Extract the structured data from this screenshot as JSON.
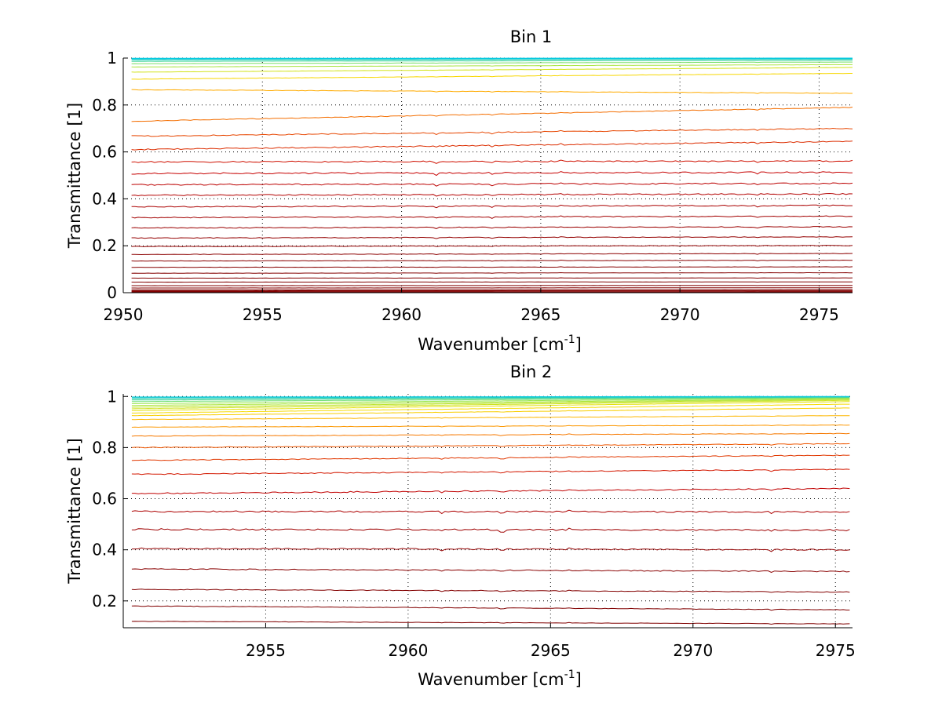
{
  "chart_data": [
    {
      "type": "line",
      "title": "Bin 1",
      "xlabel": {
        "main": "Wavenumber [cm",
        "sup": "-1",
        "close": "]"
      },
      "ylabel": "Transmittance [1]",
      "xlim": [
        2950,
        2976.2
      ],
      "ylim": [
        0,
        1.0
      ],
      "xticks": [
        2950,
        2955,
        2960,
        2965,
        2970,
        2975
      ],
      "yticks": [
        0,
        0.2,
        0.4,
        0.6,
        0.8,
        1
      ],
      "ytick_labels": [
        "0",
        "0.2",
        "0.4",
        "0.6",
        "0.8",
        "1"
      ],
      "grid": true,
      "x_range": [
        2950.3,
        2976.2
      ],
      "line_colors_by_level": "dark red (low) to orange to yellow to cyan (near 1)",
      "series": [
        {
          "start": 0.002,
          "end": 0.003
        },
        {
          "start": 0.005,
          "end": 0.006
        },
        {
          "start": 0.008,
          "end": 0.009
        },
        {
          "start": 0.012,
          "end": 0.013
        },
        {
          "start": 0.02,
          "end": 0.021
        },
        {
          "start": 0.03,
          "end": 0.031
        },
        {
          "start": 0.045,
          "end": 0.046
        },
        {
          "start": 0.062,
          "end": 0.063
        },
        {
          "start": 0.083,
          "end": 0.085
        },
        {
          "start": 0.108,
          "end": 0.11
        },
        {
          "start": 0.135,
          "end": 0.138
        },
        {
          "start": 0.163,
          "end": 0.167
        },
        {
          "start": 0.197,
          "end": 0.201
        },
        {
          "start": 0.233,
          "end": 0.238
        },
        {
          "start": 0.276,
          "end": 0.281
        },
        {
          "start": 0.32,
          "end": 0.326
        },
        {
          "start": 0.366,
          "end": 0.372
        },
        {
          "start": 0.415,
          "end": 0.421
        },
        {
          "start": 0.46,
          "end": 0.466
        },
        {
          "start": 0.508,
          "end": 0.513
        },
        {
          "start": 0.557,
          "end": 0.561
        },
        {
          "start": 0.61,
          "end": 0.645
        },
        {
          "start": 0.667,
          "end": 0.7
        },
        {
          "start": 0.731,
          "end": 0.79
        },
        {
          "start": 0.865,
          "end": 0.85
        },
        {
          "start": 0.91,
          "end": 0.935
        },
        {
          "start": 0.94,
          "end": 0.96
        },
        {
          "start": 0.962,
          "end": 0.972
        },
        {
          "start": 0.976,
          "end": 0.983
        },
        {
          "start": 0.986,
          "end": 0.99
        },
        {
          "start": 0.992,
          "end": 0.995
        },
        {
          "start": 0.996,
          "end": 0.998
        },
        {
          "start": 0.998,
          "end": 0.999
        },
        {
          "start": 0.999,
          "end": 1.0
        }
      ]
    },
    {
      "type": "line",
      "title": "Bin 2",
      "xlabel": {
        "main": "Wavenumber [cm",
        "sup": "-1",
        "close": "]"
      },
      "ylabel": "Transmittance [1]",
      "xlim": [
        2950.0,
        2975.6
      ],
      "ylim": [
        0.095,
        1.01
      ],
      "xticks": [
        2955,
        2960,
        2965,
        2970,
        2975
      ],
      "yticks": [
        0.2,
        0.4,
        0.6,
        0.8,
        1
      ],
      "ytick_labels": [
        "0.2",
        "0.4",
        "0.6",
        "0.8",
        "1"
      ],
      "grid": true,
      "x_range": [
        2950.3,
        2975.5
      ],
      "line_colors_by_level": "dark red (low) to red to orange to yellow to cyan (near 1)",
      "series": [
        {
          "start": 0.12,
          "end": 0.11
        },
        {
          "start": 0.18,
          "end": 0.165
        },
        {
          "start": 0.245,
          "end": 0.235
        },
        {
          "start": 0.325,
          "end": 0.315
        },
        {
          "start": 0.405,
          "end": 0.4
        },
        {
          "start": 0.48,
          "end": 0.477
        },
        {
          "start": 0.55,
          "end": 0.548
        },
        {
          "start": 0.62,
          "end": 0.64
        },
        {
          "start": 0.695,
          "end": 0.715
        },
        {
          "start": 0.75,
          "end": 0.77
        },
        {
          "start": 0.8,
          "end": 0.815
        },
        {
          "start": 0.845,
          "end": 0.855
        },
        {
          "start": 0.88,
          "end": 0.888
        },
        {
          "start": 0.91,
          "end": 0.925
        },
        {
          "start": 0.925,
          "end": 0.955
        },
        {
          "start": 0.935,
          "end": 0.97
        },
        {
          "start": 0.945,
          "end": 0.98
        },
        {
          "start": 0.952,
          "end": 0.985
        },
        {
          "start": 0.958,
          "end": 0.988
        },
        {
          "start": 0.965,
          "end": 0.99
        },
        {
          "start": 0.972,
          "end": 0.993
        },
        {
          "start": 0.98,
          "end": 0.995
        },
        {
          "start": 0.986,
          "end": 0.997
        },
        {
          "start": 0.991,
          "end": 0.998
        },
        {
          "start": 0.995,
          "end": 0.999
        },
        {
          "start": 0.998,
          "end": 1.0
        }
      ]
    }
  ]
}
